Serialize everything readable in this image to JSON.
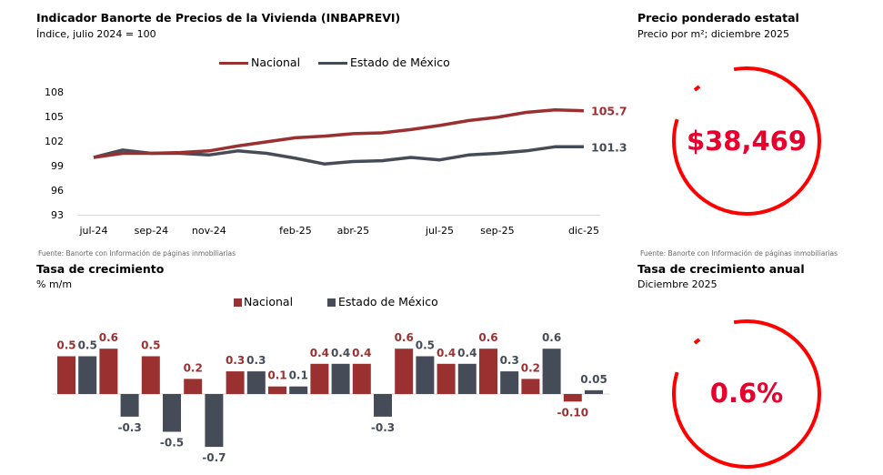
{
  "colors": {
    "nacional": "#9b3030",
    "edomex": "#464c57",
    "accent": "#ff0000",
    "kpi_text": "#e8002d"
  },
  "left_top": {
    "title": "Indicador Banorte de Precios de la Vivienda (INBAPREVI)",
    "subtitle": "Índice, julio 2024 = 100",
    "source": "Fuente: Banorte con Información de páginas inmobiliarias"
  },
  "left_bottom": {
    "title": "Tasa de crecimiento",
    "subtitle": "% m/m"
  },
  "right_top": {
    "title": "Precio ponderado estatal",
    "subtitle": "Precio por m²; diciembre 2025",
    "value": "$38,469",
    "source": "Fuente: Banorte con Información de páginas inmobiliarias"
  },
  "right_bottom": {
    "title": "Tasa de crecimiento anual",
    "subtitle": "Diciembre 2025",
    "value": "0.6%"
  },
  "chart_data": [
    {
      "type": "line",
      "legend": "top",
      "ylim": [
        93,
        108
      ],
      "yticks": [
        93,
        96,
        99,
        102,
        105,
        108
      ],
      "x": [
        "jul-24",
        "ago-24",
        "sep-24",
        "oct-24",
        "nov-24",
        "dic-24",
        "ene-25",
        "feb-25",
        "mar-25",
        "abr-25",
        "may-25",
        "jun-25",
        "jul-25",
        "ago-25",
        "sep-25",
        "oct-25",
        "nov-25",
        "dic-25"
      ],
      "xtick_labels": [
        "jul-24",
        "sep-24",
        "nov-24",
        "feb-25",
        "abr-25",
        "jul-25",
        "sep-25",
        "dic-25"
      ],
      "series": [
        {
          "name": "Nacional",
          "end_label": "105.7",
          "values": [
            100.0,
            100.5,
            100.5,
            100.6,
            100.8,
            101.4,
            101.9,
            102.4,
            102.6,
            102.9,
            103.0,
            103.4,
            103.9,
            104.5,
            104.9,
            105.5,
            105.8,
            105.7
          ]
        },
        {
          "name": "Estado de México",
          "end_label": "101.3",
          "values": [
            100.0,
            100.9,
            100.5,
            100.5,
            100.3,
            100.8,
            100.5,
            99.9,
            99.2,
            99.5,
            99.6,
            100.0,
            99.7,
            100.3,
            100.5,
            100.8,
            101.3,
            101.3
          ]
        }
      ]
    },
    {
      "type": "bar",
      "legend": "top",
      "series": [
        {
          "name": "Nacional",
          "values": [
            0.5,
            0.6,
            0.5,
            0.2,
            0.3,
            0.1,
            0.4,
            0.4,
            0.6,
            0.4,
            0.6,
            0.2,
            -0.1
          ],
          "labels": [
            "0.5",
            "0.6",
            "0.5",
            "0.2",
            "0.3",
            "0.1",
            "0.4",
            "0.4",
            "0.6",
            "0.4",
            "0.6",
            "0.2",
            "-0.10"
          ]
        },
        {
          "name": "Estado de México",
          "values": [
            0.5,
            -0.3,
            -0.5,
            -0.7,
            0.3,
            0.1,
            0.4,
            -0.3,
            0.5,
            0.4,
            0.3,
            0.6,
            0.05
          ],
          "labels": [
            "0.5",
            "-0.3",
            "-0.5",
            "-0.7",
            "0.3",
            "0.1",
            "0.4",
            "-0.3",
            "0.5",
            "0.4",
            "0.3",
            "0.6",
            "0.05"
          ]
        }
      ]
    }
  ]
}
